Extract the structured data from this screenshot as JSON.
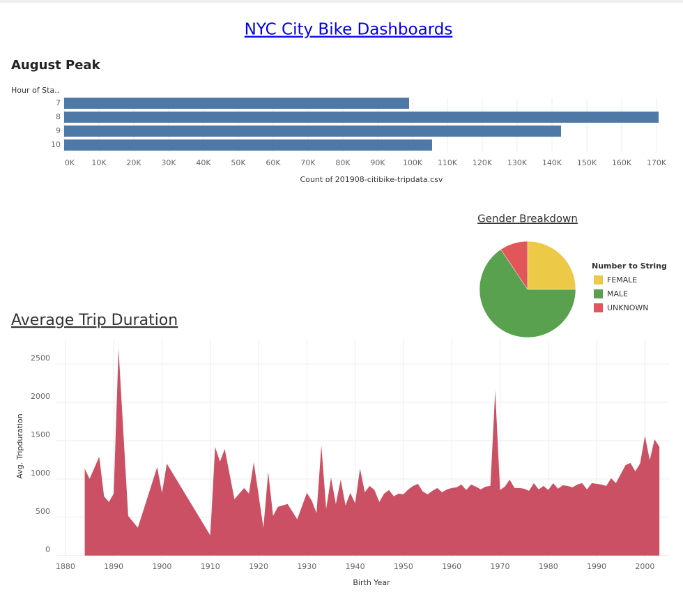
{
  "title": "NYC City Bike Dashboards",
  "chart_data": [
    {
      "type": "bar",
      "horizontal": true,
      "title": "August Peak",
      "ylabel": "Hour of Sta..",
      "xlabel": "Count of 201908-citibike-tripdata.csv",
      "categories": [
        "7",
        "8",
        "9",
        "10"
      ],
      "values": [
        99000,
        170600,
        142600,
        105600
      ],
      "color": "#4e79a7",
      "xlim": [
        0,
        175000
      ],
      "xticks": [
        {
          "value": 0,
          "label": "0K"
        },
        {
          "value": 10000,
          "label": "10K"
        },
        {
          "value": 20000,
          "label": "20K"
        },
        {
          "value": 30000,
          "label": "30K"
        },
        {
          "value": 40000,
          "label": "40K"
        },
        {
          "value": 50000,
          "label": "50K"
        },
        {
          "value": 60000,
          "label": "60K"
        },
        {
          "value": 70000,
          "label": "70K"
        },
        {
          "value": 80000,
          "label": "80K"
        },
        {
          "value": 90000,
          "label": "90K"
        },
        {
          "value": 100000,
          "label": "100K"
        },
        {
          "value": 110000,
          "label": "110K"
        },
        {
          "value": 120000,
          "label": "120K"
        },
        {
          "value": 130000,
          "label": "130K"
        },
        {
          "value": 140000,
          "label": "140K"
        },
        {
          "value": 150000,
          "label": "150K"
        },
        {
          "value": 160000,
          "label": "160K"
        },
        {
          "value": 170000,
          "label": "170K"
        }
      ]
    },
    {
      "type": "pie",
      "title": "Gender Breakdown",
      "legend_title": "Number to String",
      "categories": [
        "FEMALE",
        "MALE",
        "UNKNOWN"
      ],
      "values": [
        25,
        65.6,
        9.4
      ],
      "colors": [
        "#edc948",
        "#59a14f",
        "#e15759"
      ]
    },
    {
      "type": "area",
      "title": "Average Trip Duration",
      "xlabel": "Birth Year",
      "ylabel": "Avg. Tripduration",
      "color": "#cc5064",
      "grid": true,
      "x": [
        1884,
        1885,
        1887,
        1888,
        1889,
        1890,
        1891,
        1893,
        1895,
        1899,
        1900,
        1901,
        1910,
        1911,
        1912,
        1913,
        1915,
        1917,
        1918,
        1919,
        1921,
        1922,
        1923,
        1924,
        1926,
        1928,
        1930,
        1931,
        1932,
        1933,
        1934,
        1935,
        1936,
        1937,
        1938,
        1939,
        1940,
        1941,
        1942,
        1943,
        1944,
        1945,
        1946,
        1947,
        1948,
        1949,
        1950,
        1951,
        1952,
        1953,
        1954,
        1955,
        1956,
        1957,
        1958,
        1959,
        1960,
        1961,
        1962,
        1963,
        1964,
        1965,
        1966,
        1967,
        1968,
        1969,
        1970,
        1971,
        1972,
        1973,
        1974,
        1975,
        1976,
        1977,
        1978,
        1979,
        1980,
        1981,
        1982,
        1983,
        1984,
        1985,
        1986,
        1987,
        1988,
        1989,
        1990,
        1991,
        1992,
        1993,
        1994,
        1995,
        1996,
        1997,
        1998,
        1999,
        2000,
        2001,
        2002,
        2003
      ],
      "values": [
        1136,
        1000,
        1290,
        773,
        700,
        809,
        2700,
        518,
        364,
        1155,
        818,
        1200,
        264,
        1418,
        1227,
        1390,
        736,
        882,
        809,
        1218,
        364,
        1091,
        518,
        636,
        673,
        473,
        818,
        718,
        555,
        1436,
        609,
        1018,
        673,
        991,
        655,
        818,
        682,
        1136,
        827,
        909,
        855,
        700,
        809,
        855,
        773,
        809,
        800,
        864,
        909,
        936,
        836,
        800,
        845,
        882,
        827,
        864,
        882,
        891,
        927,
        855,
        927,
        900,
        864,
        900,
        909,
        2155,
        855,
        900,
        991,
        882,
        882,
        873,
        845,
        945,
        864,
        909,
        855,
        945,
        873,
        918,
        909,
        891,
        927,
        945,
        864,
        945,
        936,
        927,
        909,
        1009,
        945,
        1064,
        1182,
        1209,
        1100,
        1200,
        1564,
        1245,
        1518,
        1418
      ],
      "xlim": [
        1878,
        2005
      ],
      "xticks": [
        1880,
        1890,
        1900,
        1910,
        1920,
        1930,
        1940,
        1950,
        1960,
        1970,
        1980,
        1990,
        2000
      ],
      "ylim": [
        -30,
        2820
      ],
      "yticks": [
        0,
        500,
        1000,
        1500,
        2000,
        2500
      ]
    }
  ]
}
